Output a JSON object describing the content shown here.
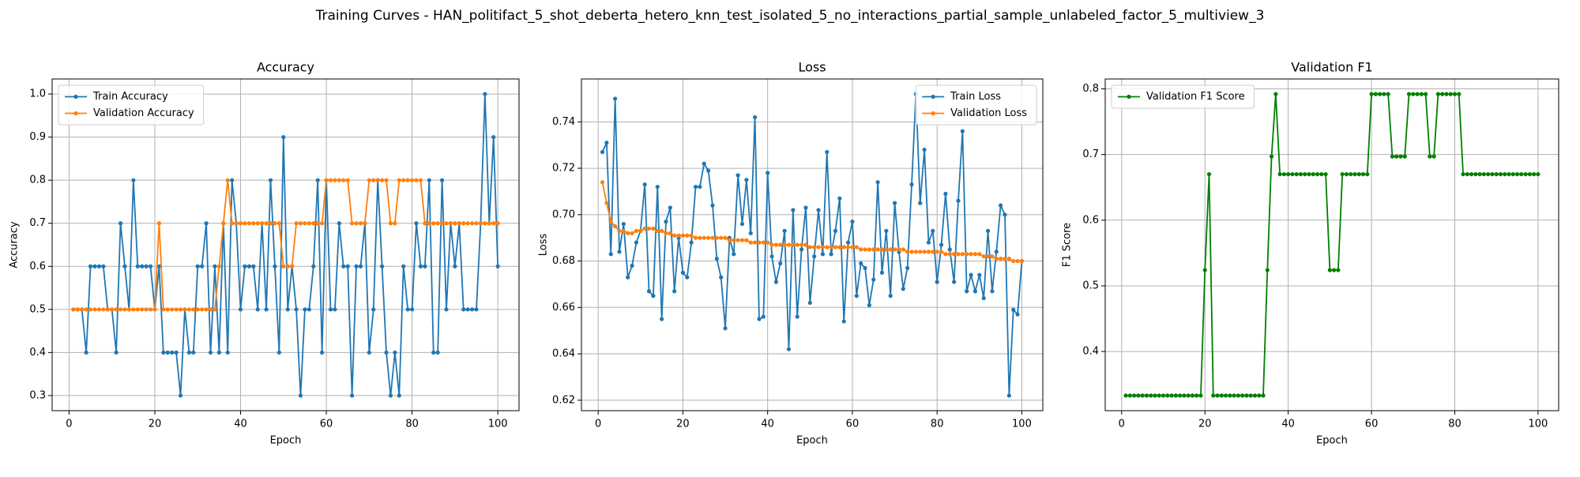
{
  "title": "Training Curves - HAN_politifact_5_shot_deberta_hetero_knn_test_isolated_5_no_interactions_partial_sample_unlabeled_factor_5_multiview_3",
  "chart_data": [
    {
      "type": "line",
      "title": "Accuracy",
      "xlabel": "Epoch",
      "ylabel": "Accuracy",
      "x": [
        1,
        2,
        3,
        4,
        5,
        6,
        7,
        8,
        9,
        10,
        11,
        12,
        13,
        14,
        15,
        16,
        17,
        18,
        19,
        20,
        21,
        22,
        23,
        24,
        25,
        26,
        27,
        28,
        29,
        30,
        31,
        32,
        33,
        34,
        35,
        36,
        37,
        38,
        39,
        40,
        41,
        42,
        43,
        44,
        45,
        46,
        47,
        48,
        49,
        50,
        51,
        52,
        53,
        54,
        55,
        56,
        57,
        58,
        59,
        60,
        61,
        62,
        63,
        64,
        65,
        66,
        67,
        68,
        69,
        70,
        71,
        72,
        73,
        74,
        75,
        76,
        77,
        78,
        79,
        80,
        81,
        82,
        83,
        84,
        85,
        86,
        87,
        88,
        89,
        90,
        91,
        92,
        93,
        94,
        95,
        96,
        97,
        98,
        99,
        100
      ],
      "series": [
        {
          "name": "Train Accuracy",
          "color": "#1f77b4",
          "values": [
            0.5,
            0.5,
            0.5,
            0.4,
            0.6,
            0.6,
            0.6,
            0.6,
            0.5,
            0.5,
            0.4,
            0.7,
            0.6,
            0.5,
            0.8,
            0.6,
            0.6,
            0.6,
            0.6,
            0.5,
            0.6,
            0.4,
            0.4,
            0.4,
            0.4,
            0.3,
            0.5,
            0.4,
            0.4,
            0.6,
            0.6,
            0.7,
            0.4,
            0.6,
            0.4,
            0.7,
            0.4,
            0.8,
            0.7,
            0.5,
            0.6,
            0.6,
            0.6,
            0.5,
            0.7,
            0.5,
            0.8,
            0.6,
            0.4,
            0.9,
            0.5,
            0.6,
            0.5,
            0.3,
            0.5,
            0.5,
            0.6,
            0.8,
            0.4,
            0.8,
            0.5,
            0.5,
            0.7,
            0.6,
            0.6,
            0.3,
            0.6,
            0.6,
            0.7,
            0.4,
            0.5,
            0.8,
            0.6,
            0.4,
            0.3,
            0.4,
            0.3,
            0.6,
            0.5,
            0.5,
            0.7,
            0.6,
            0.6,
            0.8,
            0.4,
            0.4,
            0.8,
            0.5,
            0.7,
            0.6,
            0.7,
            0.5,
            0.5,
            0.5,
            0.5,
            0.7,
            1.0,
            0.7,
            0.9,
            0.6
          ]
        },
        {
          "name": "Validation Accuracy",
          "color": "#ff7f0e",
          "values": [
            0.5,
            0.5,
            0.5,
            0.5,
            0.5,
            0.5,
            0.5,
            0.5,
            0.5,
            0.5,
            0.5,
            0.5,
            0.5,
            0.5,
            0.5,
            0.5,
            0.5,
            0.5,
            0.5,
            0.5,
            0.7,
            0.5,
            0.5,
            0.5,
            0.5,
            0.5,
            0.5,
            0.5,
            0.5,
            0.5,
            0.5,
            0.5,
            0.5,
            0.5,
            0.6,
            0.7,
            0.8,
            0.7,
            0.7,
            0.7,
            0.7,
            0.7,
            0.7,
            0.7,
            0.7,
            0.7,
            0.7,
            0.7,
            0.7,
            0.6,
            0.6,
            0.6,
            0.7,
            0.7,
            0.7,
            0.7,
            0.7,
            0.7,
            0.7,
            0.8,
            0.8,
            0.8,
            0.8,
            0.8,
            0.8,
            0.7,
            0.7,
            0.7,
            0.7,
            0.8,
            0.8,
            0.8,
            0.8,
            0.8,
            0.7,
            0.7,
            0.8,
            0.8,
            0.8,
            0.8,
            0.8,
            0.8,
            0.7,
            0.7,
            0.7,
            0.7,
            0.7,
            0.7,
            0.7,
            0.7,
            0.7,
            0.7,
            0.7,
            0.7,
            0.7,
            0.7,
            0.7,
            0.7,
            0.7,
            0.7
          ]
        }
      ],
      "xlim": [
        -3.95,
        104.95
      ],
      "ylim": [
        0.265,
        1.035
      ],
      "xticks": [
        0,
        20,
        40,
        60,
        80,
        100
      ],
      "yticks": [
        0.3,
        0.4,
        0.5,
        0.6,
        0.7,
        0.8,
        0.9,
        {
          "value": 1,
          "label": "1.0"
        }
      ],
      "grid": true,
      "legend": "upper left"
    },
    {
      "type": "line",
      "title": "Loss",
      "xlabel": "Epoch",
      "ylabel": "Loss",
      "x": [
        1,
        2,
        3,
        4,
        5,
        6,
        7,
        8,
        9,
        10,
        11,
        12,
        13,
        14,
        15,
        16,
        17,
        18,
        19,
        20,
        21,
        22,
        23,
        24,
        25,
        26,
        27,
        28,
        29,
        30,
        31,
        32,
        33,
        34,
        35,
        36,
        37,
        38,
        39,
        40,
        41,
        42,
        43,
        44,
        45,
        46,
        47,
        48,
        49,
        50,
        51,
        52,
        53,
        54,
        55,
        56,
        57,
        58,
        59,
        60,
        61,
        62,
        63,
        64,
        65,
        66,
        67,
        68,
        69,
        70,
        71,
        72,
        73,
        74,
        75,
        76,
        77,
        78,
        79,
        80,
        81,
        82,
        83,
        84,
        85,
        86,
        87,
        88,
        89,
        90,
        91,
        92,
        93,
        94,
        95,
        96,
        97,
        98,
        99,
        100
      ],
      "series": [
        {
          "name": "Train Loss",
          "color": "#1f77b4",
          "values": [
            0.727,
            0.731,
            0.683,
            0.75,
            0.684,
            0.696,
            0.673,
            0.678,
            0.688,
            0.693,
            0.713,
            0.667,
            0.665,
            0.712,
            0.655,
            0.697,
            0.703,
            0.667,
            0.69,
            0.675,
            0.673,
            0.688,
            0.712,
            0.712,
            0.722,
            0.719,
            0.704,
            0.681,
            0.673,
            0.651,
            0.69,
            0.683,
            0.717,
            0.696,
            0.715,
            0.692,
            0.742,
            0.655,
            0.656,
            0.718,
            0.682,
            0.671,
            0.679,
            0.693,
            0.642,
            0.702,
            0.656,
            0.685,
            0.703,
            0.662,
            0.682,
            0.702,
            0.683,
            0.727,
            0.683,
            0.693,
            0.707,
            0.654,
            0.688,
            0.697,
            0.665,
            0.679,
            0.677,
            0.661,
            0.672,
            0.714,
            0.675,
            0.693,
            0.665,
            0.705,
            0.684,
            0.668,
            0.677,
            0.713,
            0.752,
            0.705,
            0.728,
            0.688,
            0.693,
            0.671,
            0.687,
            0.709,
            0.685,
            0.671,
            0.706,
            0.736,
            0.667,
            0.674,
            0.667,
            0.674,
            0.664,
            0.693,
            0.667,
            0.684,
            0.704,
            0.7,
            0.622,
            0.659,
            0.657,
            0.68
          ]
        },
        {
          "name": "Validation Loss",
          "color": "#ff7f0e",
          "values": [
            0.714,
            0.705,
            0.697,
            0.695,
            0.693,
            0.693,
            0.692,
            0.692,
            0.693,
            0.693,
            0.694,
            0.694,
            0.694,
            0.693,
            0.693,
            0.692,
            0.692,
            0.691,
            0.691,
            0.691,
            0.691,
            0.691,
            0.69,
            0.69,
            0.69,
            0.69,
            0.69,
            0.69,
            0.69,
            0.69,
            0.689,
            0.689,
            0.689,
            0.689,
            0.689,
            0.688,
            0.688,
            0.688,
            0.688,
            0.688,
            0.687,
            0.687,
            0.687,
            0.687,
            0.687,
            0.687,
            0.687,
            0.687,
            0.687,
            0.686,
            0.686,
            0.686,
            0.686,
            0.686,
            0.686,
            0.686,
            0.686,
            0.686,
            0.686,
            0.686,
            0.686,
            0.685,
            0.685,
            0.685,
            0.685,
            0.685,
            0.685,
            0.685,
            0.685,
            0.685,
            0.685,
            0.685,
            0.684,
            0.684,
            0.684,
            0.684,
            0.684,
            0.684,
            0.684,
            0.684,
            0.684,
            0.683,
            0.683,
            0.683,
            0.683,
            0.683,
            0.683,
            0.683,
            0.683,
            0.683,
            0.682,
            0.682,
            0.682,
            0.681,
            0.681,
            0.681,
            0.681,
            0.68,
            0.68,
            0.68
          ]
        }
      ],
      "xlim": [
        -3.95,
        104.95
      ],
      "ylim": [
        0.6155,
        0.7585
      ],
      "xticks": [
        0,
        20,
        40,
        60,
        80,
        100
      ],
      "yticks": [
        0.62,
        0.64,
        0.66,
        0.68,
        {
          "value": 0.7,
          "label": "0.70"
        },
        0.72,
        0.74
      ],
      "grid": true,
      "legend": "upper right"
    },
    {
      "type": "line",
      "title": "Validation F1",
      "xlabel": "Epoch",
      "ylabel": "F1 Score",
      "x": [
        1,
        2,
        3,
        4,
        5,
        6,
        7,
        8,
        9,
        10,
        11,
        12,
        13,
        14,
        15,
        16,
        17,
        18,
        19,
        20,
        21,
        22,
        23,
        24,
        25,
        26,
        27,
        28,
        29,
        30,
        31,
        32,
        33,
        34,
        35,
        36,
        37,
        38,
        39,
        40,
        41,
        42,
        43,
        44,
        45,
        46,
        47,
        48,
        49,
        50,
        51,
        52,
        53,
        54,
        55,
        56,
        57,
        58,
        59,
        60,
        61,
        62,
        63,
        64,
        65,
        66,
        67,
        68,
        69,
        70,
        71,
        72,
        73,
        74,
        75,
        76,
        77,
        78,
        79,
        80,
        81,
        82,
        83,
        84,
        85,
        86,
        87,
        88,
        89,
        90,
        91,
        92,
        93,
        94,
        95,
        96,
        97,
        98,
        99,
        100
      ],
      "series": [
        {
          "name": "Validation F1 Score",
          "color": "#008000",
          "values": [
            0.333,
            0.333,
            0.333,
            0.333,
            0.333,
            0.333,
            0.333,
            0.333,
            0.333,
            0.333,
            0.333,
            0.333,
            0.333,
            0.333,
            0.333,
            0.333,
            0.333,
            0.333,
            0.333,
            0.524,
            0.67,
            0.333,
            0.333,
            0.333,
            0.333,
            0.333,
            0.333,
            0.333,
            0.333,
            0.333,
            0.333,
            0.333,
            0.333,
            0.333,
            0.524,
            0.697,
            0.792,
            0.67,
            0.67,
            0.67,
            0.67,
            0.67,
            0.67,
            0.67,
            0.67,
            0.67,
            0.67,
            0.67,
            0.67,
            0.524,
            0.524,
            0.524,
            0.67,
            0.67,
            0.67,
            0.67,
            0.67,
            0.67,
            0.67,
            0.792,
            0.792,
            0.792,
            0.792,
            0.792,
            0.697,
            0.697,
            0.697,
            0.697,
            0.792,
            0.792,
            0.792,
            0.792,
            0.792,
            0.697,
            0.697,
            0.792,
            0.792,
            0.792,
            0.792,
            0.792,
            0.792,
            0.67,
            0.67,
            0.67,
            0.67,
            0.67,
            0.67,
            0.67,
            0.67,
            0.67,
            0.67,
            0.67,
            0.67,
            0.67,
            0.67,
            0.67,
            0.67,
            0.67,
            0.67,
            0.67
          ]
        }
      ],
      "xlim": [
        -3.95,
        104.95
      ],
      "ylim": [
        0.31,
        0.815
      ],
      "xticks": [
        0,
        20,
        40,
        60,
        80,
        100
      ],
      "yticks": [
        0.4,
        0.5,
        0.6,
        0.7,
        0.8
      ],
      "grid": true,
      "legend": "upper left"
    }
  ]
}
